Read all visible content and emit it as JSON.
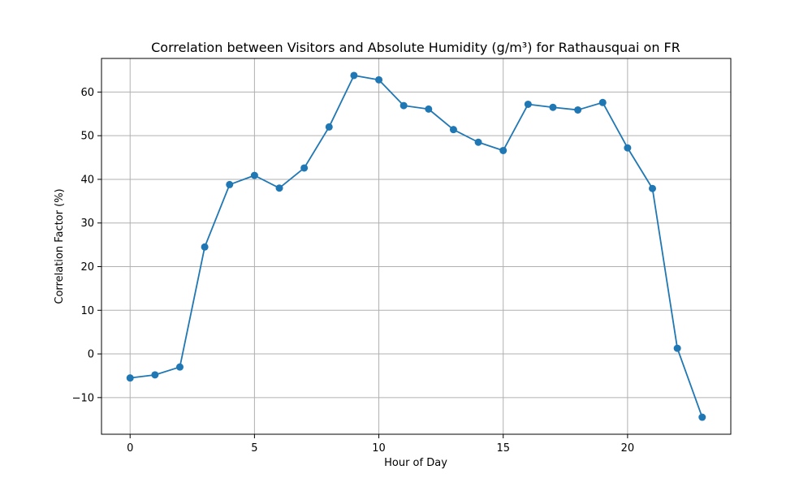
{
  "chart_data": {
    "type": "line",
    "title": "Correlation between Visitors and Absolute Humidity (g/m³) for Rathausquai on FR",
    "xlabel": "Hour of Day",
    "ylabel": "Correlation Factor (%)",
    "x": [
      0,
      1,
      2,
      3,
      4,
      5,
      6,
      7,
      8,
      9,
      10,
      11,
      12,
      13,
      14,
      15,
      16,
      17,
      18,
      19,
      20,
      21,
      22,
      23
    ],
    "series": [
      {
        "values": [
          -5.5,
          -4.8,
          -3.0,
          24.5,
          38.8,
          40.9,
          38.0,
          42.6,
          52.0,
          63.8,
          62.8,
          56.9,
          56.1,
          51.4,
          48.5,
          46.6,
          57.2,
          56.5,
          55.9,
          57.6,
          47.2,
          37.9,
          1.3,
          -14.5
        ]
      }
    ],
    "xlim": [
      -1.15,
      24.15
    ],
    "ylim": [
      -18.4,
      67.7
    ],
    "xticks": [
      0,
      5,
      10,
      15,
      20
    ],
    "yticks": [
      -10,
      0,
      10,
      20,
      30,
      40,
      50,
      60
    ],
    "ytick_labels": [
      "−10",
      "0",
      "10",
      "20",
      "30",
      "40",
      "50",
      "60"
    ],
    "grid": true,
    "colors": {
      "line": "#1f77b4",
      "marker": "#1f77b4",
      "grid": "#b0b0b0"
    }
  }
}
